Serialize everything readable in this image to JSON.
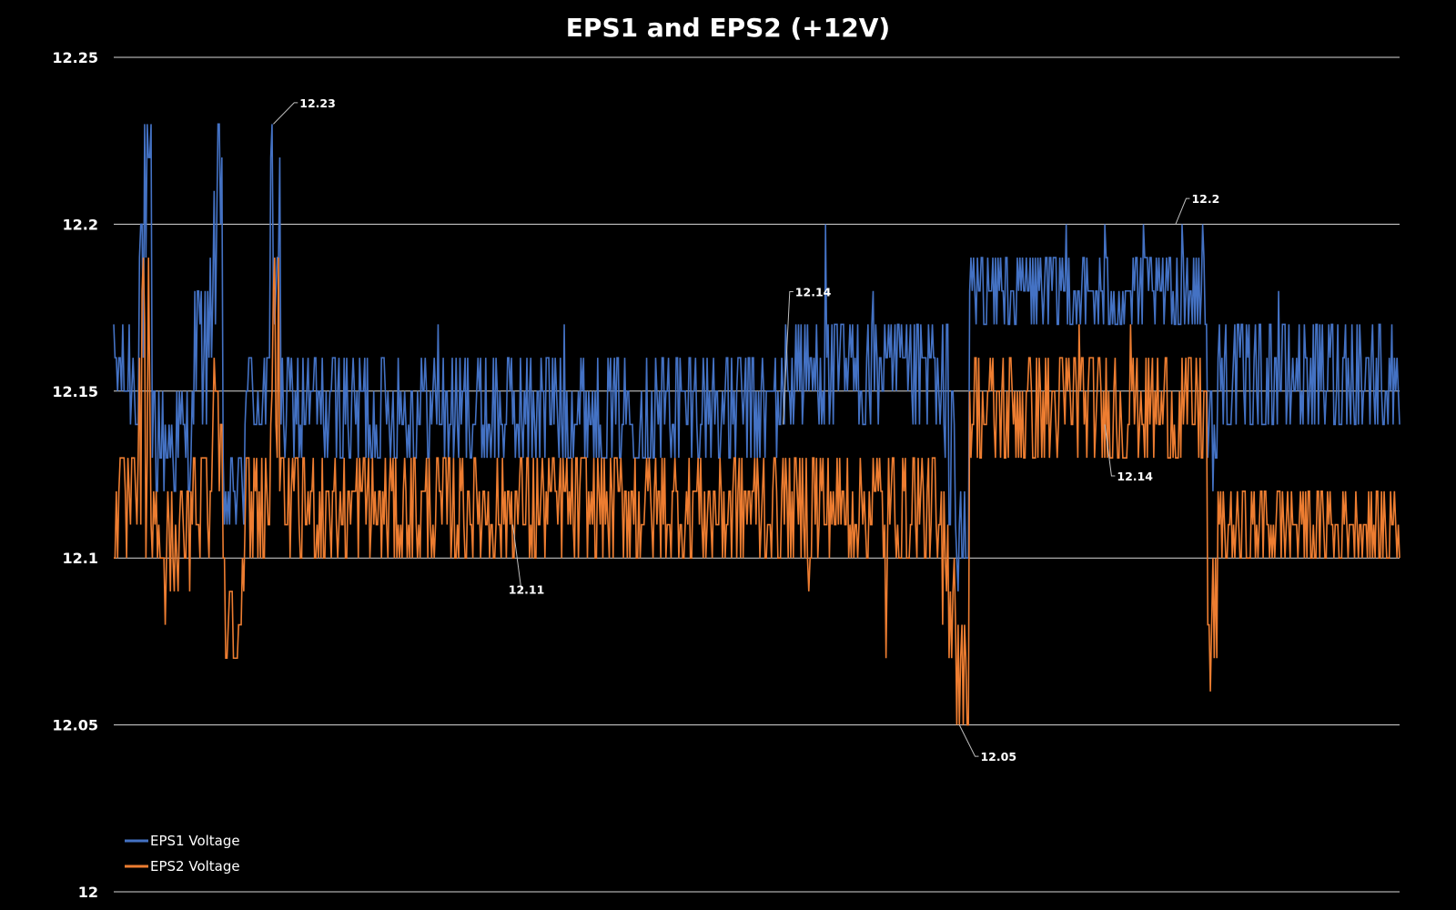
{
  "chart_data": {
    "type": "line",
    "title": "EPS1 and EPS2 (+12V)",
    "xlabel": "",
    "ylabel": "",
    "ylim": [
      12,
      12.25
    ],
    "yticks": [
      12,
      12.05,
      12.1,
      12.15,
      12.2,
      12.25
    ],
    "ytick_labels": [
      "12",
      "12.05",
      "12.1",
      "12.15",
      "12.2",
      "12.25"
    ],
    "grid": true,
    "legend_position": "bottom-left",
    "x_count": 1000,
    "series": [
      {
        "name": "EPS1 Voltage",
        "color": "#4472c4",
        "segments": [
          {
            "start": 0,
            "end": 20,
            "low": 12.14,
            "high": 12.17
          },
          {
            "start": 20,
            "end": 30,
            "low": 12.15,
            "high": 12.23
          },
          {
            "start": 30,
            "end": 62,
            "low": 12.12,
            "high": 12.15
          },
          {
            "start": 62,
            "end": 75,
            "low": 12.14,
            "high": 12.18
          },
          {
            "start": 75,
            "end": 85,
            "low": 12.16,
            "high": 12.23
          },
          {
            "start": 85,
            "end": 102,
            "low": 12.11,
            "high": 12.13
          },
          {
            "start": 102,
            "end": 122,
            "low": 12.14,
            "high": 12.16
          },
          {
            "start": 122,
            "end": 130,
            "low": 12.16,
            "high": 12.23
          },
          {
            "start": 130,
            "end": 520,
            "low": 12.13,
            "high": 12.16
          },
          {
            "start": 520,
            "end": 640,
            "low": 12.14,
            "high": 12.17
          },
          {
            "start": 640,
            "end": 655,
            "low": 12.11,
            "high": 12.17
          },
          {
            "start": 655,
            "end": 665,
            "low": 12.08,
            "high": 12.12
          },
          {
            "start": 665,
            "end": 850,
            "low": 12.17,
            "high": 12.19
          },
          {
            "start": 850,
            "end": 858,
            "low": 12.12,
            "high": 12.15
          },
          {
            "start": 858,
            "end": 1000,
            "low": 12.14,
            "high": 12.17
          }
        ],
        "spikes": [
          {
            "x": 123,
            "value": 12.23
          },
          {
            "x": 553,
            "value": 12.2
          },
          {
            "x": 690,
            "value": 12.18
          },
          {
            "x": 740,
            "value": 12.2
          },
          {
            "x": 770,
            "value": 12.2
          },
          {
            "x": 800,
            "value": 12.2
          },
          {
            "x": 830,
            "value": 12.2
          },
          {
            "x": 846,
            "value": 12.2
          },
          {
            "x": 590,
            "value": 12.18
          },
          {
            "x": 905,
            "value": 12.18
          },
          {
            "x": 252,
            "value": 12.17
          },
          {
            "x": 350,
            "value": 12.17
          }
        ]
      },
      {
        "name": "EPS2 Voltage",
        "color": "#ed7d31",
        "segments": [
          {
            "start": 0,
            "end": 20,
            "low": 12.1,
            "high": 12.13
          },
          {
            "start": 20,
            "end": 30,
            "low": 12.1,
            "high": 12.19
          },
          {
            "start": 30,
            "end": 62,
            "low": 12.09,
            "high": 12.12
          },
          {
            "start": 62,
            "end": 75,
            "low": 12.1,
            "high": 12.14
          },
          {
            "start": 75,
            "end": 85,
            "low": 12.12,
            "high": 12.18
          },
          {
            "start": 85,
            "end": 102,
            "low": 12.07,
            "high": 12.1
          },
          {
            "start": 102,
            "end": 122,
            "low": 12.1,
            "high": 12.13
          },
          {
            "start": 122,
            "end": 130,
            "low": 12.12,
            "high": 12.19
          },
          {
            "start": 130,
            "end": 640,
            "low": 12.1,
            "high": 12.13
          },
          {
            "start": 640,
            "end": 655,
            "low": 12.07,
            "high": 12.12
          },
          {
            "start": 655,
            "end": 665,
            "low": 12.05,
            "high": 12.08
          },
          {
            "start": 665,
            "end": 850,
            "low": 12.13,
            "high": 12.16
          },
          {
            "start": 850,
            "end": 858,
            "low": 12.07,
            "high": 12.1
          },
          {
            "start": 858,
            "end": 1000,
            "low": 12.1,
            "high": 12.12
          }
        ],
        "spikes": [
          {
            "x": 128,
            "value": 12.19
          },
          {
            "x": 540,
            "value": 12.09
          },
          {
            "x": 600,
            "value": 12.07
          },
          {
            "x": 655,
            "value": 12.05
          },
          {
            "x": 852,
            "value": 12.06
          },
          {
            "x": 40,
            "value": 12.08
          },
          {
            "x": 95,
            "value": 12.07
          },
          {
            "x": 750,
            "value": 12.17
          },
          {
            "x": 790,
            "value": 12.17
          }
        ]
      }
    ],
    "annotations": [
      {
        "label": "12.23",
        "series": "EPS1 Voltage",
        "x": 124,
        "value": 12.23,
        "text_x": 143,
        "text_value": 12.2364,
        "side": "right"
      },
      {
        "label": "12.14",
        "series": "EPS1 Voltage",
        "x": 520,
        "value": 12.14,
        "text_x": 528,
        "text_value": 12.1798,
        "side": "right"
      },
      {
        "label": "12.2",
        "series": "EPS1 Voltage",
        "x": 825,
        "value": 12.2,
        "text_x": 836,
        "text_value": 12.2077,
        "side": "right"
      },
      {
        "label": "12.11",
        "series": "EPS2 Voltage",
        "x": 310,
        "value": 12.11,
        "text_x": 318,
        "text_value": 12.0906,
        "side": "left"
      },
      {
        "label": "12.14",
        "series": "EPS2 Voltage",
        "x": 770,
        "value": 12.14,
        "text_x": 778,
        "text_value": 12.1246,
        "side": "right"
      },
      {
        "label": "12.05",
        "series": "EPS2 Voltage",
        "x": 657,
        "value": 12.05,
        "text_x": 672,
        "text_value": 12.0406,
        "side": "right"
      }
    ]
  }
}
